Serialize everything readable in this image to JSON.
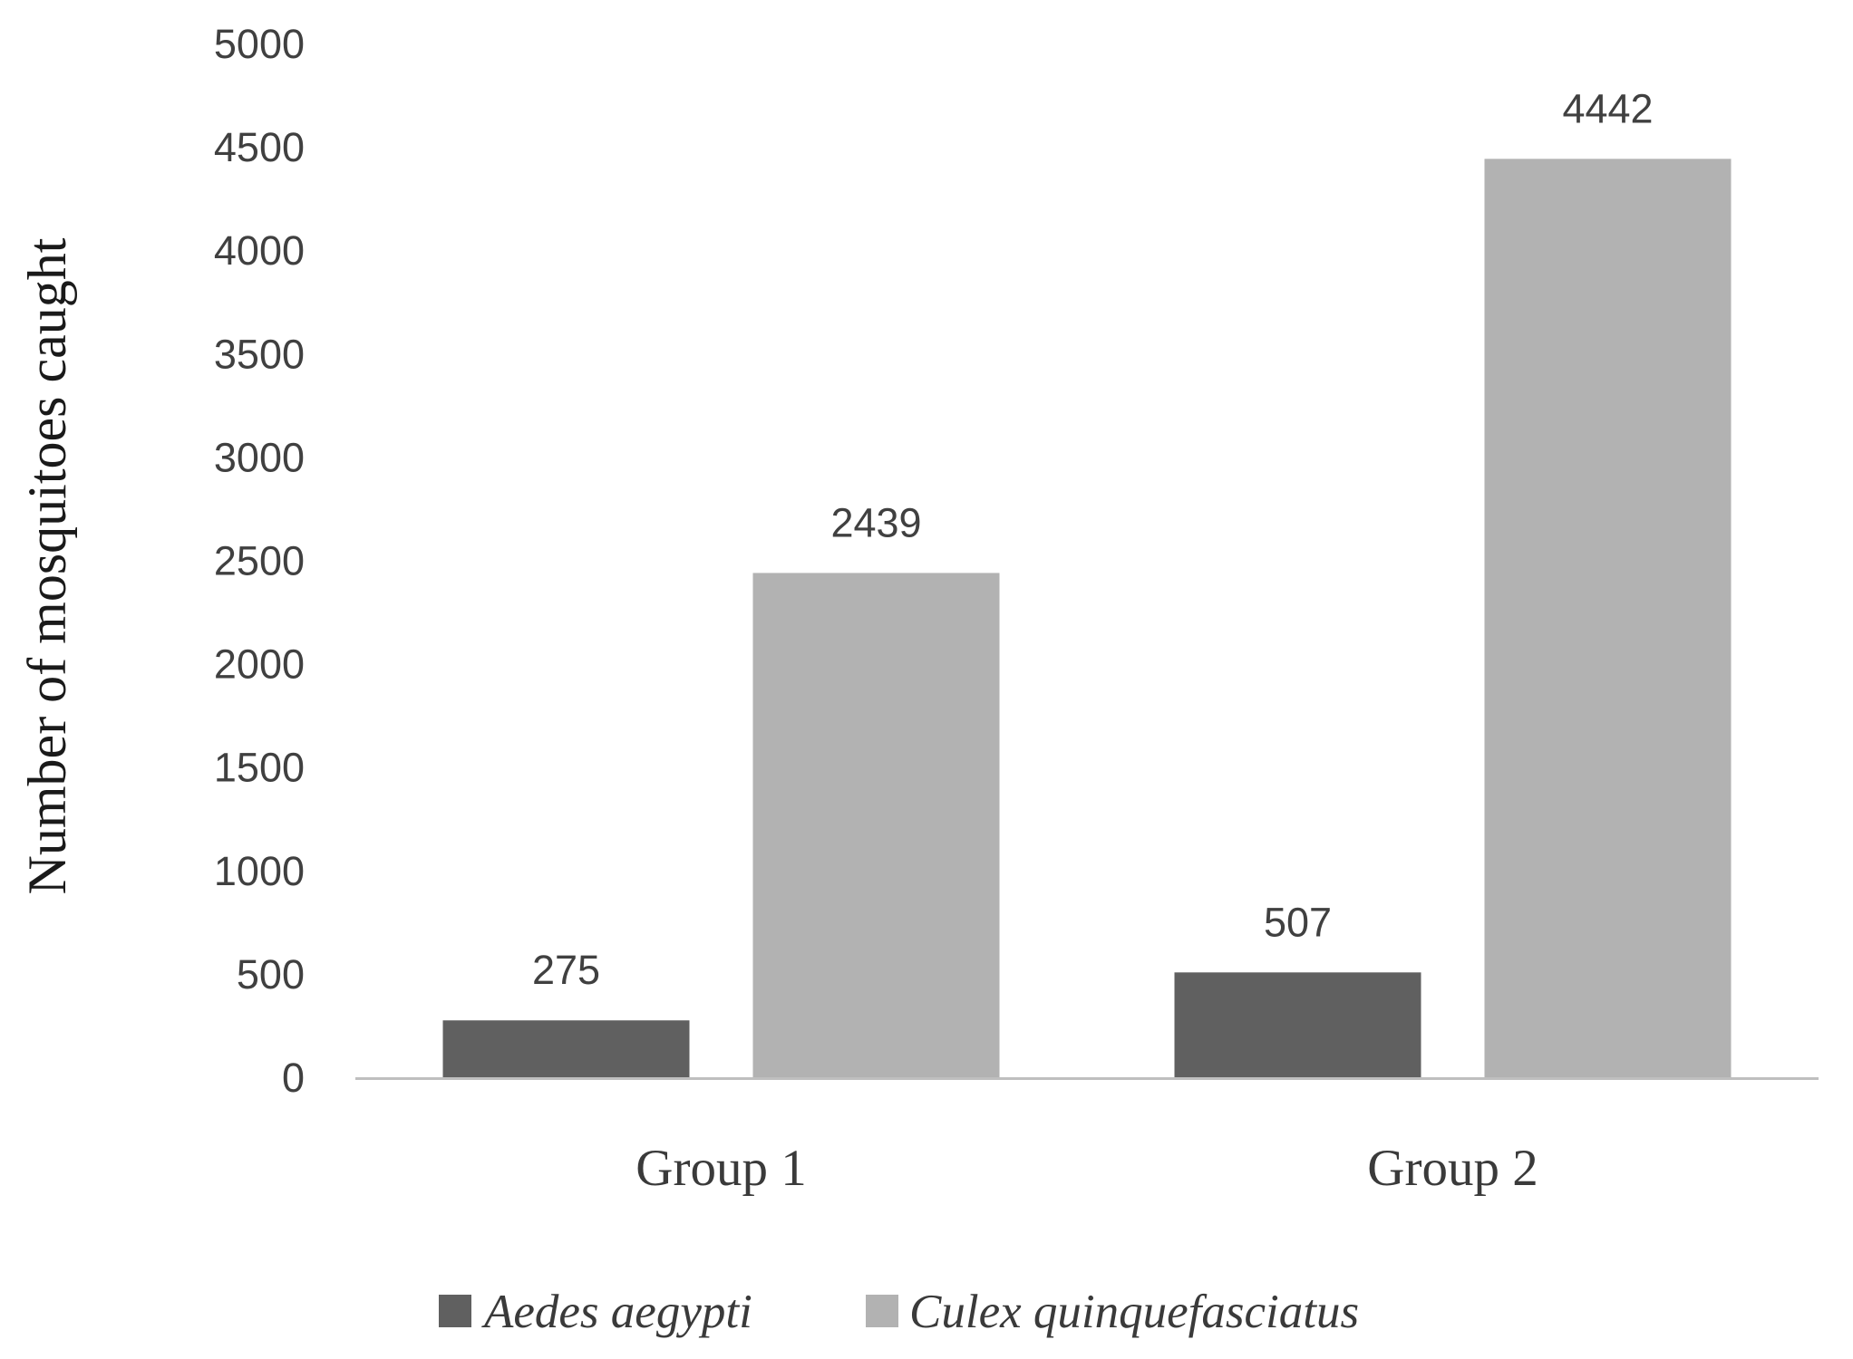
{
  "chart_data": {
    "type": "bar",
    "title": "",
    "xlabel": "",
    "ylabel": "Number of mosquitoes caught",
    "categories": [
      "Group 1",
      "Group 2"
    ],
    "series": [
      {
        "name": "Aedes aegypti",
        "values": [
          275,
          507
        ],
        "color": "#606060"
      },
      {
        "name": "Culex quinquefasciatus",
        "values": [
          2439,
          4442
        ],
        "color": "#b2b2b2"
      }
    ],
    "ylim": [
      0,
      5000
    ],
    "yticks": [
      0,
      500,
      1000,
      1500,
      2000,
      2500,
      3000,
      3500,
      4000,
      4500,
      5000
    ],
    "data_labels": true,
    "grid": false,
    "legend": "bottom",
    "axis_color": "#bfbfbf"
  }
}
